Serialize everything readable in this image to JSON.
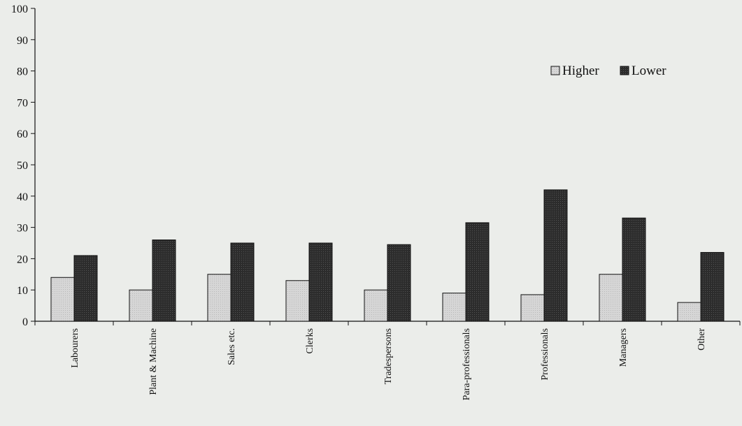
{
  "chart_data": {
    "type": "bar",
    "title": "",
    "xlabel": "",
    "ylabel": "",
    "ylim": [
      0,
      100
    ],
    "yticks": [
      0,
      10,
      20,
      30,
      40,
      50,
      60,
      70,
      80,
      90,
      100
    ],
    "grid": false,
    "legend_position": "top-right",
    "categories": [
      "Labourers",
      "Plant & Machine",
      "Sales etc.",
      "Clerks",
      "Tradespersons",
      "Para-professionals",
      "Professionals",
      "Managers",
      "Other"
    ],
    "series": [
      {
        "name": "Higher",
        "values": [
          14,
          10,
          15,
          13,
          10,
          9,
          8.5,
          15,
          6
        ],
        "color": "#d4d4d4"
      },
      {
        "name": "Lower",
        "values": [
          21,
          26,
          25,
          25,
          24.5,
          31.5,
          42,
          33,
          22
        ],
        "color": "#2b2b2b"
      }
    ]
  }
}
